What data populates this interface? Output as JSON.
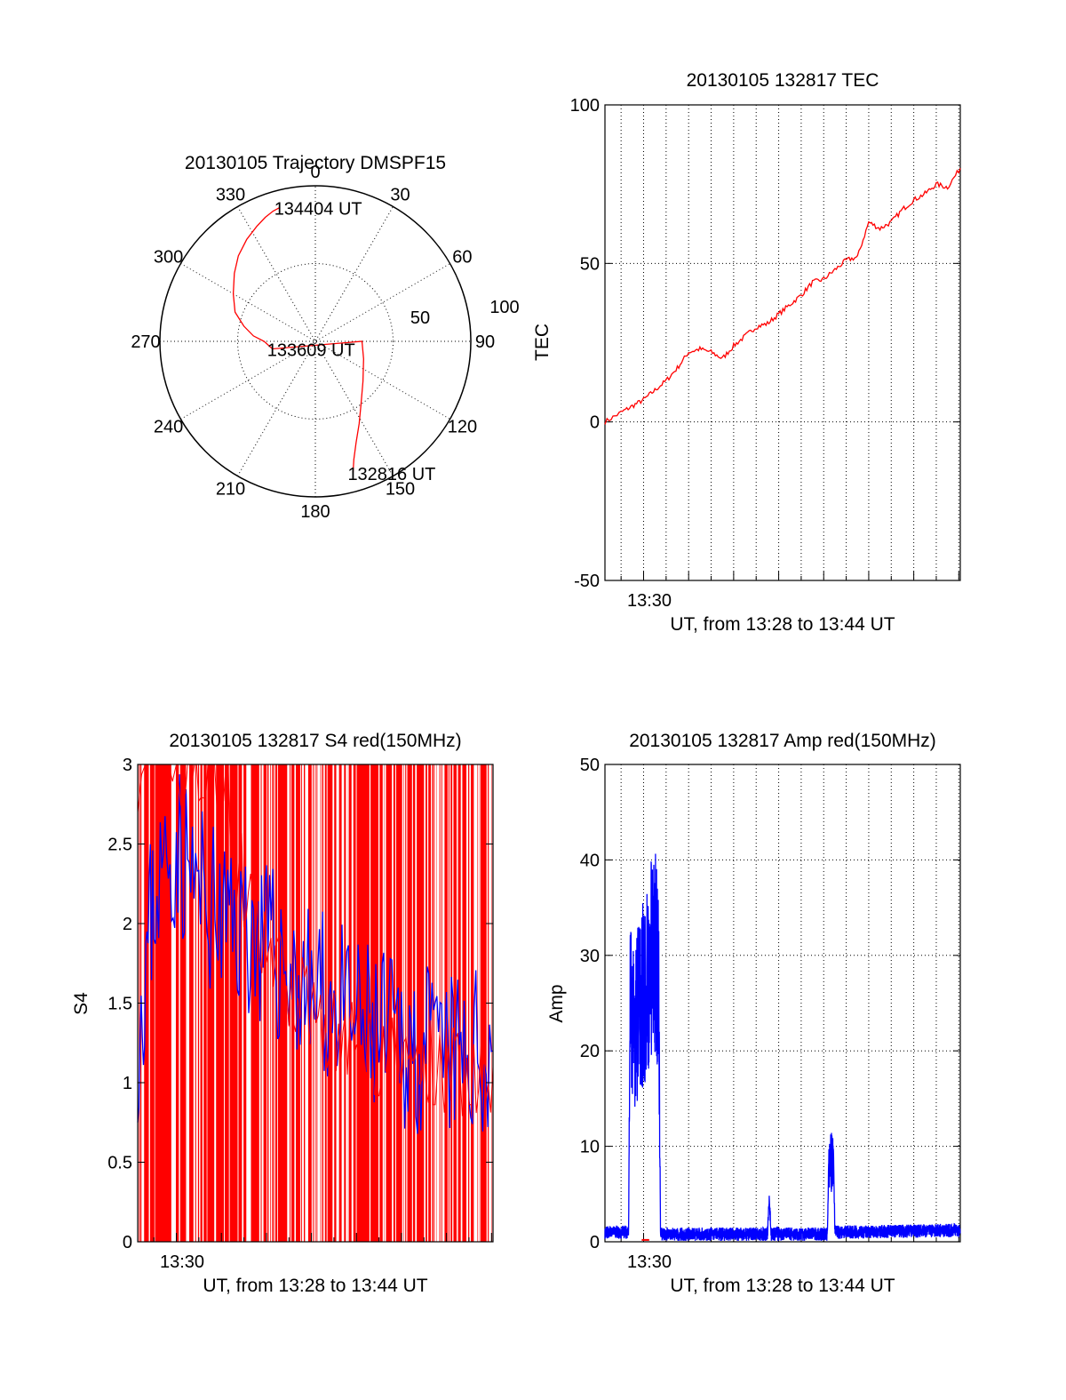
{
  "chart_data": [
    {
      "type": "polar",
      "title": "20130105 Trajectory DMSPF15",
      "azimuth_labels": [
        "0",
        "30",
        "60",
        "90",
        "120",
        "150",
        "180",
        "210",
        "240",
        "270",
        "300",
        "330"
      ],
      "radial_labels": [
        "50",
        "100"
      ],
      "radius_max": 100,
      "series": [
        {
          "color": "#ff0000",
          "azimuth": [
            164,
            162,
            158,
            152,
            144,
            130,
            110,
            90,
            260,
            270,
            275,
            282,
            290,
            300,
            310,
            318,
            326,
            333,
            338,
            342,
            345
          ],
          "value": [
            88,
            80,
            70,
            60,
            50,
            40,
            33,
            30,
            28,
            33,
            40,
            47,
            55,
            61,
            68,
            74,
            79,
            83,
            86,
            88,
            89
          ]
        }
      ],
      "annotations": [
        {
          "text": "134404 UT",
          "azimuth": 345,
          "value": 89
        },
        {
          "text": "133609 UT",
          "azimuth": 260,
          "value": 28
        },
        {
          "text": "132816 UT",
          "azimuth": 164,
          "value": 88
        }
      ]
    },
    {
      "type": "line",
      "title": "20130105 132817 TEC",
      "xlabel": "UT, from 13:28 to 13:44 UT",
      "ylabel": "TEC",
      "x_tick_label": "13:30",
      "xlim": [
        "13:28:17",
        "13:44:04"
      ],
      "ylim": [
        -50,
        100
      ],
      "yticks": [
        -50,
        0,
        50,
        100
      ],
      "grid": true,
      "series": [
        {
          "color": "#ff0000",
          "x": [
            "13:28:17",
            "13:29:00",
            "13:29:30",
            "13:30:00",
            "13:30:30",
            "13:31:00",
            "13:31:30",
            "13:32:00",
            "13:32:30",
            "13:33:00",
            "13:33:30",
            "13:34:00",
            "13:34:30",
            "13:35:00",
            "13:35:30",
            "13:36:00",
            "13:36:30",
            "13:37:00",
            "13:37:30",
            "13:38:00",
            "13:38:30",
            "13:39:00",
            "13:39:30",
            "13:40:00",
            "13:40:30",
            "13:41:00",
            "13:41:30",
            "13:42:00",
            "13:42:30",
            "13:43:00",
            "13:43:30",
            "13:44:04"
          ],
          "y": [
            0,
            3,
            5,
            7,
            10,
            13,
            17,
            22,
            23,
            22,
            20,
            24,
            27,
            30,
            31,
            34,
            37,
            40,
            44,
            45,
            48,
            51,
            52,
            63,
            61,
            63,
            67,
            70,
            72,
            75,
            74,
            80
          ]
        }
      ]
    },
    {
      "type": "line",
      "title": "20130105 132817 S4 red(150MHz)",
      "xlabel": "UT, from 13:28 to 13:44 UT",
      "ylabel": "S4",
      "x_tick_label": "13:30",
      "xlim": [
        "13:28:17",
        "13:44:04"
      ],
      "ylim": [
        0,
        3
      ],
      "yticks": [
        0,
        0.5,
        1,
        1.5,
        2,
        2.5,
        3
      ],
      "series": [
        {
          "color": "#ff0000",
          "x": [
            "13:28:17",
            "13:30:00",
            "13:31:00",
            "13:32:00",
            "13:33:00",
            "13:34:00",
            "13:35:00",
            "13:36:00",
            "13:37:00",
            "13:38:00",
            "13:39:00",
            "13:40:00",
            "13:41:00",
            "13:42:00",
            "13:43:00",
            "13:44:04"
          ],
          "y": [
            3,
            3,
            3,
            3,
            2.2,
            1.8,
            1.6,
            1.5,
            1.3,
            1.2,
            1.2,
            1.15,
            1.1,
            1.1,
            1.05,
            1.1
          ]
        },
        {
          "color": "#0000ff",
          "x": [
            "13:28:17",
            "13:29:00",
            "13:30:00",
            "13:31:00",
            "13:32:00",
            "13:33:00",
            "13:34:00",
            "13:35:00",
            "13:36:00",
            "13:37:00",
            "13:38:00",
            "13:39:00",
            "13:40:00",
            "13:41:00",
            "13:42:00",
            "13:43:00",
            "13:44:04"
          ],
          "y": [
            1.3,
            2.2,
            2.5,
            2.2,
            2.0,
            2.0,
            1.85,
            1.7,
            1.55,
            1.5,
            1.35,
            1.3,
            1.25,
            1.2,
            1.15,
            1.15,
            1.2
          ]
        }
      ]
    },
    {
      "type": "line",
      "title": "20130105 132817 Amp red(150MHz)",
      "xlabel": "UT, from 13:28 to 13:44 UT",
      "ylabel": "Amp",
      "x_tick_label": "13:30",
      "xlim": [
        "13:28:17",
        "13:44:04"
      ],
      "ylim": [
        0,
        50
      ],
      "yticks": [
        0,
        10,
        20,
        30,
        40,
        50
      ],
      "grid": true,
      "series": [
        {
          "color": "#ff0000",
          "x": [
            "13:29:55",
            "13:30:15"
          ],
          "y": [
            0.2,
            0.2
          ]
        },
        {
          "color": "#0000ff",
          "x": [
            "13:28:17",
            "13:29:20",
            "13:29:25",
            "13:29:30",
            "13:30:30",
            "13:30:40",
            "13:30:45",
            "13:30:50",
            "13:35:30",
            "13:35:35",
            "13:35:40",
            "13:38:10",
            "13:38:15",
            "13:38:25",
            "13:38:30",
            "13:44:04"
          ],
          "y": [
            1,
            1,
            37,
            30,
            42,
            37,
            1,
            0.8,
            0.8,
            4.5,
            0.8,
            0.8,
            12,
            11,
            1,
            1.2
          ]
        }
      ]
    }
  ]
}
